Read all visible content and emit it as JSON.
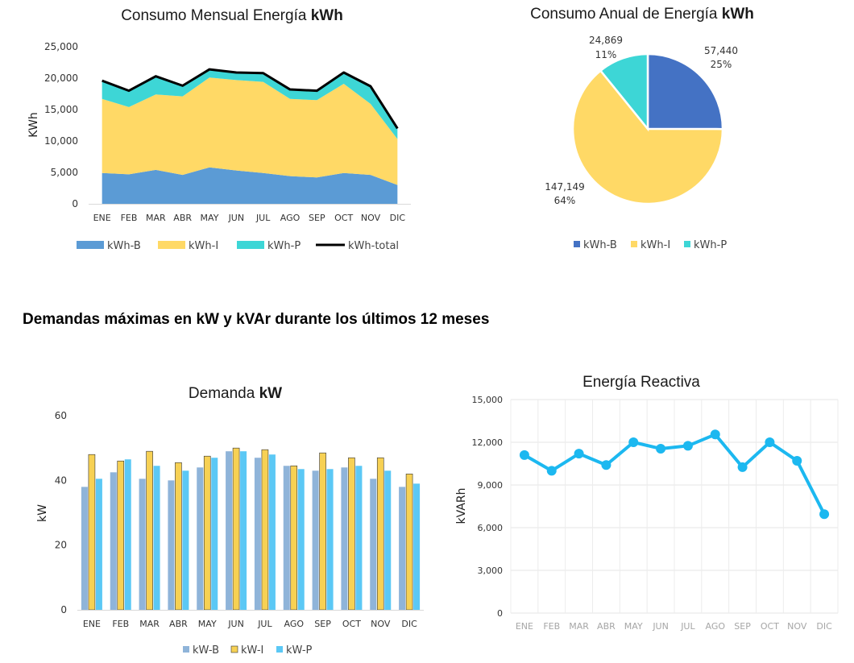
{
  "section_heading": "Demandas máximas en kW y kVAr durante los últimos 12 meses",
  "colors": {
    "kwh_b": "#5b9bd5",
    "kwh_i": "#ffd966",
    "kwh_p": "#3dd6d6",
    "total": "#000000",
    "pie_b": "#4472c4",
    "pie_i": "#ffd966",
    "pie_p": "#3dd6d6",
    "kw_b": "#8fb4d9",
    "kw_i": "#f7d154",
    "kw_p": "#5bc8f5",
    "reactive": "#1cb8f0"
  },
  "chart_data": [
    {
      "type": "area",
      "title_prefix": "Consumo Mensual Energía ",
      "title_bold": "kWh",
      "ylabel": "KWh",
      "ylim": [
        0,
        25000
      ],
      "yticks": [
        "0",
        "5,000",
        "10,000",
        "15,000",
        "20,000",
        "25,000"
      ],
      "ytick_values": [
        0,
        5000,
        10000,
        15000,
        20000,
        25000
      ],
      "categories": [
        "ENE",
        "FEB",
        "MAR",
        "ABR",
        "MAY",
        "JUN",
        "JUL",
        "AGO",
        "SEP",
        "OCT",
        "NOV",
        "DIC"
      ],
      "stacked": true,
      "series": [
        {
          "name": "kWh-B",
          "values": [
            4900,
            4700,
            5400,
            4600,
            5800,
            5300,
            4900,
            4400,
            4200,
            4900,
            4600,
            3000
          ]
        },
        {
          "name": "kWh-I",
          "values": [
            11800,
            10700,
            12000,
            12500,
            14300,
            14400,
            14500,
            12300,
            12300,
            14200,
            11300,
            7300
          ]
        },
        {
          "name": "kWh-P",
          "values": [
            2900,
            2600,
            2900,
            1700,
            1300,
            1200,
            1400,
            1500,
            1500,
            1800,
            2800,
            1700
          ]
        }
      ],
      "total": {
        "name": "kWh-total",
        "values": [
          19600,
          18000,
          20300,
          18800,
          21400,
          20900,
          20800,
          18200,
          18000,
          20900,
          18700,
          12000
        ]
      },
      "legend": [
        "kWh-B",
        "kWh-I",
        "kWh-P",
        "kWh-total"
      ]
    },
    {
      "type": "pie",
      "title_prefix": "Consumo Anual de Energía ",
      "title_bold": "kWh",
      "slices": [
        {
          "name": "kWh-B",
          "value": 57440,
          "label": "57,440",
          "percent": "25%"
        },
        {
          "name": "kWh-I",
          "value": 147149,
          "label": "147,149",
          "percent": "64%"
        },
        {
          "name": "kWh-P",
          "value": 24869,
          "label": "24,869",
          "percent": "11%"
        }
      ],
      "legend": [
        "kWh-B",
        "kWh-I",
        "kWh-P"
      ]
    },
    {
      "type": "bar",
      "title_prefix": "Demanda ",
      "title_bold": "kW",
      "ylabel": "kW",
      "ylim": [
        0,
        60
      ],
      "yticks": [
        "0",
        "20",
        "40",
        "60"
      ],
      "ytick_values": [
        0,
        20,
        40,
        60
      ],
      "categories": [
        "ENE",
        "FEB",
        "MAR",
        "ABR",
        "MAY",
        "JUN",
        "JUL",
        "AGO",
        "SEP",
        "OCT",
        "NOV",
        "DIC"
      ],
      "series": [
        {
          "name": "kW-B",
          "values": [
            38,
            42.5,
            40.5,
            40,
            44,
            49,
            47,
            44.5,
            43,
            44,
            40.5,
            38
          ]
        },
        {
          "name": "kW-I",
          "values": [
            48,
            46,
            49,
            45.5,
            47.5,
            50,
            49.5,
            44.5,
            48.5,
            47,
            47,
            42
          ]
        },
        {
          "name": "kW-P",
          "values": [
            40.5,
            46.5,
            44.5,
            43,
            47,
            49,
            48,
            43.5,
            43.5,
            44.5,
            43,
            39
          ]
        }
      ],
      "legend": [
        "kW-B",
        "kW-I",
        "kW-P"
      ]
    },
    {
      "type": "line",
      "title": "Energía Reactiva",
      "ylabel": "kVARh",
      "ylim": [
        0,
        15000
      ],
      "yticks": [
        "0",
        "3,000",
        "6,000",
        "9,000",
        "12,000",
        "15,000"
      ],
      "ytick_values": [
        0,
        3000,
        6000,
        9000,
        12000,
        15000
      ],
      "categories": [
        "ENE",
        "FEB",
        "MAR",
        "ABR",
        "MAY",
        "JUN",
        "JUL",
        "AGO",
        "SEP",
        "OCT",
        "NOV",
        "DIC"
      ],
      "values": [
        11100,
        10000,
        11200,
        10400,
        12000,
        11550,
        11750,
        12550,
        10250,
        12000,
        10700,
        6950
      ]
    }
  ]
}
